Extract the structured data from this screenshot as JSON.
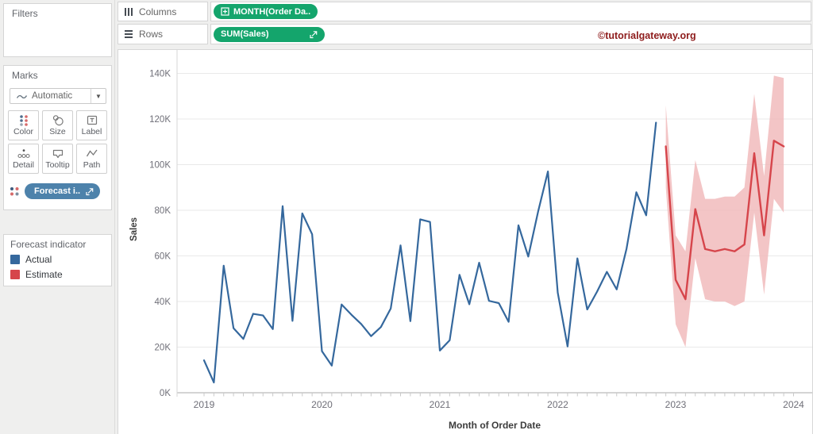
{
  "sidebar": {
    "filters": {
      "title": "Filters"
    },
    "marks": {
      "title": "Marks",
      "mark_type": "Automatic",
      "buttons": [
        {
          "label": "Color"
        },
        {
          "label": "Size"
        },
        {
          "label": "Label"
        },
        {
          "label": "Detail"
        },
        {
          "label": "Tooltip"
        },
        {
          "label": "Path"
        }
      ],
      "forecast_pill": "Forecast i.."
    },
    "legend": {
      "title": "Forecast indicator",
      "items": [
        {
          "label": "Actual",
          "color": "#35689d"
        },
        {
          "label": "Estimate",
          "color": "#d6454b"
        }
      ]
    }
  },
  "shelves": {
    "columns": {
      "label": "Columns",
      "pill": "MONTH(Order Da.."
    },
    "rows": {
      "label": "Rows",
      "pill": "SUM(Sales)"
    }
  },
  "watermark": "©tutorialgateway.org",
  "chart_data": {
    "type": "line",
    "title": "",
    "xlabel": "Month of Order Date",
    "ylabel": "Sales",
    "x_ticks": [
      "2019",
      "2020",
      "2021",
      "2022",
      "2023",
      "2024"
    ],
    "y_ticks": [
      "0K",
      "20K",
      "40K",
      "60K",
      "80K",
      "100K",
      "120K",
      "140K"
    ],
    "y_tick_values_k": [
      0,
      20,
      40,
      60,
      80,
      100,
      120,
      140
    ],
    "ylim_k": [
      0,
      150
    ],
    "grid": "horizontal-only",
    "legend_position": "left",
    "series": [
      {
        "name": "Actual",
        "color": "#35689d",
        "start_month": "2019-01",
        "values_k": [
          14.2,
          4.5,
          55.7,
          28.3,
          23.6,
          34.6,
          33.9,
          27.9,
          81.8,
          31.5,
          78.6,
          69.5,
          18.2,
          11.9,
          38.7,
          34.2,
          30.1,
          24.8,
          28.8,
          36.9,
          64.6,
          31.4,
          76.0,
          74.9,
          18.5,
          23.0,
          51.7,
          38.8,
          57.0,
          40.3,
          39.3,
          31.1,
          73.4,
          59.7,
          79.4,
          97.0,
          43.9,
          20.3,
          58.9,
          36.5,
          44.3,
          53.0,
          45.3,
          63.1,
          87.9,
          77.8,
          118.4
        ]
      },
      {
        "name": "Estimate",
        "color": "#d6454b",
        "band_color": "#f0b6b8",
        "start_month": "2022-12",
        "values_k": [
          108,
          49.5,
          41,
          80.5,
          63,
          62,
          63,
          62,
          65,
          105,
          69,
          110.5,
          108
        ],
        "band_hi_k": [
          126,
          69,
          62,
          102,
          85,
          85,
          86,
          86,
          90,
          131,
          95,
          139,
          138
        ],
        "band_lo_k": [
          90,
          30,
          20,
          59,
          41,
          40,
          40,
          38,
          40,
          79,
          43,
          85,
          79
        ]
      }
    ]
  }
}
